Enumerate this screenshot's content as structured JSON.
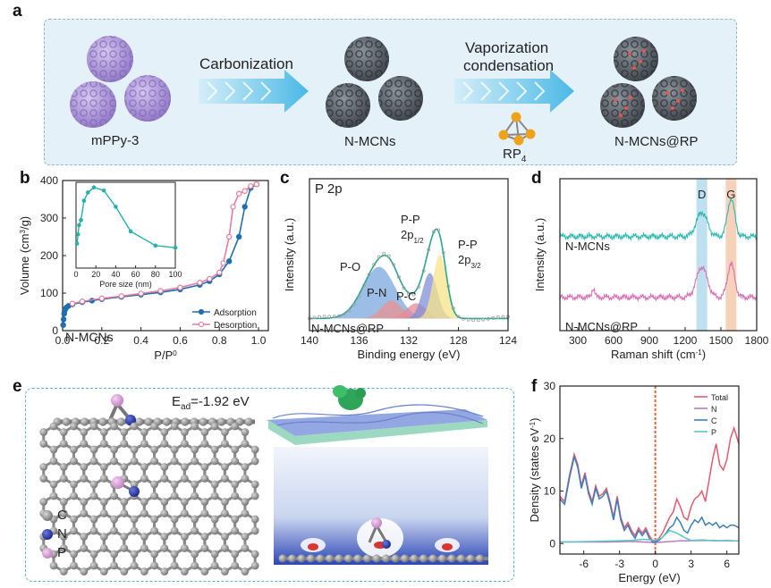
{
  "panel_labels": {
    "a": "a",
    "b": "b",
    "c": "c",
    "d": "d",
    "e": "e",
    "f": "f"
  },
  "panel_a": {
    "items": [
      "mPPy-3",
      "N-MCNs",
      "N-MCNs@RP"
    ],
    "arrow1_label": "Carbonization",
    "arrow2_label_line1": "Vaporization",
    "arrow2_label_line2": "condensation",
    "rp4_label": "RP",
    "rp4_sub": "4",
    "colors": {
      "mppy": "#b9a3df",
      "mcn": "#555b63",
      "rp": "#e8564f",
      "arrow": "#5cc3ea",
      "p_atom": "#f0a21c"
    }
  },
  "panel_e": {
    "energy_label": "E",
    "energy_sub": "ad",
    "energy_value": "=-1.92 eV",
    "legend": [
      {
        "label": "C",
        "color": "#8f8f8f"
      },
      {
        "label": "N",
        "color": "#2b3a9f"
      },
      {
        "label": "P",
        "color": "#d79bd5"
      }
    ]
  },
  "chart_data": [
    {
      "id": "b",
      "type": "line",
      "xlabel": "P/P",
      "xlabel_sup": "0",
      "ylabel": "Volume (cm",
      "ylabel_sup": "3",
      "ylabel_end": "/g)",
      "xlim": [
        0,
        1.05
      ],
      "ylim": [
        0,
        400
      ],
      "xticks": [
        "0.0",
        "0.2",
        "0.4",
        "0.6",
        "0.8",
        "1.0"
      ],
      "xtick_values": [
        0,
        0.2,
        0.4,
        0.6,
        0.8,
        1.0
      ],
      "yticks": [
        "0",
        "100",
        "200",
        "300",
        "400"
      ],
      "ytick_values": [
        0,
        100,
        200,
        300,
        400
      ],
      "annotation": "N-MCNs",
      "series": [
        {
          "name": "Adsorption",
          "color": "#1f6fb0",
          "x": [
            0.003,
            0.005,
            0.008,
            0.01,
            0.015,
            0.02,
            0.03,
            0.05,
            0.1,
            0.15,
            0.2,
            0.3,
            0.4,
            0.5,
            0.6,
            0.7,
            0.75,
            0.8,
            0.85,
            0.9,
            0.93,
            0.96,
            0.99
          ],
          "y": [
            15,
            30,
            45,
            52,
            58,
            62,
            66,
            70,
            76,
            80,
            84,
            90,
            96,
            102,
            110,
            122,
            132,
            150,
            185,
            250,
            330,
            380,
            390
          ]
        },
        {
          "name": "Desorption",
          "color": "#e77ca0",
          "x": [
            0.99,
            0.96,
            0.93,
            0.9,
            0.87,
            0.85,
            0.82,
            0.8,
            0.75,
            0.7,
            0.6,
            0.5,
            0.4,
            0.3,
            0.2,
            0.1,
            0.05
          ],
          "y": [
            390,
            385,
            372,
            365,
            330,
            250,
            180,
            155,
            138,
            128,
            115,
            106,
            99,
            92,
            86,
            78,
            72
          ]
        }
      ],
      "inset": {
        "xlabel": "Pore size (nm)",
        "xlim": [
          0,
          100
        ],
        "xticks": [
          "0",
          "20",
          "40",
          "60",
          "80",
          "100"
        ],
        "xtick_values": [
          0,
          20,
          40,
          60,
          80,
          100
        ],
        "ylim": [
          0,
          420
        ],
        "color": "#27b1a8",
        "x": [
          1,
          2,
          3,
          5,
          8,
          12,
          18,
          28,
          40,
          55,
          80,
          100
        ],
        "y": [
          120,
          165,
          210,
          235,
          330,
          370,
          395,
          380,
          300,
          180,
          110,
          100
        ]
      }
    },
    {
      "id": "c",
      "type": "line",
      "title": "P 2p",
      "xlabel": "Binding energy (eV)",
      "ylabel": "Intensity (a.u.)",
      "xlim": [
        140,
        124
      ],
      "xticks": [
        "140",
        "136",
        "132",
        "128",
        "124"
      ],
      "xtick_values": [
        140,
        136,
        132,
        128,
        124
      ],
      "ylim": [
        0,
        1
      ],
      "annotation": "N-MCNs@RP",
      "peaks": [
        {
          "name": "P-O",
          "center": 134.4,
          "height": 0.34,
          "width": 1.3,
          "color": "#7ba7dd"
        },
        {
          "name": "P-N",
          "center": 133.4,
          "height": 0.12,
          "width": 0.8,
          "color": "#e8938f"
        },
        {
          "name": "P-C",
          "center": 131.4,
          "height": 0.1,
          "width": 0.8,
          "color": "#e6899a"
        },
        {
          "name": "P-P 2p1/2",
          "center": 130.3,
          "height": 0.3,
          "width": 0.6,
          "color": "#7f8fd8"
        },
        {
          "name": "P-P 2p3/2",
          "center": 129.5,
          "height": 0.42,
          "width": 0.55,
          "color": "#f7e48a"
        }
      ],
      "peak_labels": [
        {
          "text": "P-O",
          "sub": ""
        },
        {
          "text": "P-N",
          "sub": ""
        },
        {
          "text": "P-C",
          "sub": ""
        },
        {
          "text": "P-P",
          "line2": "2p",
          "sub": "1/2"
        },
        {
          "text": "P-P",
          "line2": "2p",
          "sub": "3/2"
        }
      ],
      "baseline": 0.08,
      "envelope_color": "#2aa58f",
      "data_color": "#a0a0a0"
    },
    {
      "id": "d",
      "type": "line",
      "xlabel": "Raman shift (cm",
      "xlabel_sup": "-1",
      "xlabel_end": ")",
      "ylabel": "Intensity (a.u.)",
      "xlim": [
        150,
        1800
      ],
      "xticks": [
        "300",
        "600",
        "900",
        "1200",
        "1500",
        "1800"
      ],
      "xtick_values": [
        300,
        600,
        900,
        1200,
        1500,
        1800
      ],
      "bands": [
        {
          "name": "D",
          "center": 1340,
          "width": 90,
          "color": "#bfe0ee"
        },
        {
          "name": "G",
          "center": 1585,
          "width": 90,
          "color": "#f7d2bb"
        }
      ],
      "series": [
        {
          "name": "N-MCNs",
          "color": "#2bb7b0",
          "offset": 0.62,
          "d_height": 0.16,
          "g_height": 0.25,
          "bg_peak": 0
        },
        {
          "name": "N-MCNs@RP",
          "color": "#d76fb6",
          "offset": 0.22,
          "d_height": 0.2,
          "g_height": 0.22,
          "bg_peak": 0.06
        }
      ]
    },
    {
      "id": "f",
      "type": "line",
      "xlabel": "Energy (eV)",
      "ylabel": "Density (states eV",
      "ylabel_sup": "-1",
      "ylabel_end": ")",
      "xlim": [
        -8,
        7
      ],
      "ylim": [
        -2,
        30
      ],
      "xticks": [
        "-6",
        "-3",
        "0",
        "3",
        "6"
      ],
      "xtick_values": [
        -6,
        -3,
        0,
        3,
        6
      ],
      "yticks": [
        "0",
        "10",
        "20",
        "30"
      ],
      "ytick_values": [
        0,
        10,
        20,
        30
      ],
      "fermi_color": "#e06a3e",
      "series": [
        {
          "name": "Total",
          "color": "#e35b6c",
          "x": [
            -8,
            -7.6,
            -7.2,
            -6.8,
            -6.5,
            -6.2,
            -5.9,
            -5.6,
            -5.3,
            -5.0,
            -4.7,
            -4.4,
            -4.1,
            -3.8,
            -3.5,
            -3.2,
            -2.9,
            -2.6,
            -2.3,
            -2.0,
            -1.7,
            -1.4,
            -1.1,
            -0.8,
            -0.5,
            -0.2,
            0,
            0.3,
            0.6,
            0.9,
            1.2,
            1.5,
            1.8,
            2.1,
            2.4,
            2.7,
            3.0,
            3.3,
            3.6,
            3.9,
            4.2,
            4.5,
            4.8,
            5.1,
            5.4,
            5.7,
            6.0,
            6.3,
            6.6,
            7
          ],
          "y": [
            9,
            8,
            13,
            17,
            15,
            11,
            13.5,
            10,
            8,
            11,
            9,
            9.5,
            10.5,
            8,
            5,
            9,
            5,
            3,
            4,
            2.5,
            1.5,
            3,
            2,
            3,
            1.5,
            0.5,
            0.5,
            1,
            2,
            3.5,
            5,
            6,
            8.5,
            7,
            5,
            4.5,
            7,
            8.5,
            9,
            10,
            8,
            12,
            16,
            19,
            15,
            14,
            16,
            20,
            22,
            19
          ]
        },
        {
          "name": "N",
          "color": "#b877c7",
          "x": [
            -8,
            -4,
            -2,
            0,
            2,
            4,
            7
          ],
          "y": [
            0.3,
            0.3,
            0.4,
            0.2,
            0.5,
            0.6,
            0.5
          ]
        },
        {
          "name": "C",
          "color": "#3b7fc0",
          "x": [
            -8,
            -7.6,
            -7.2,
            -6.8,
            -6.5,
            -6.2,
            -5.9,
            -5.6,
            -5.3,
            -5.0,
            -4.7,
            -4.4,
            -4.1,
            -3.8,
            -3.5,
            -3.2,
            -2.9,
            -2.6,
            -2.3,
            -2.0,
            -1.7,
            -1.4,
            -1.1,
            -0.8,
            -0.5,
            -0.2,
            0,
            0.3,
            0.6,
            0.9,
            1.2,
            1.5,
            1.8,
            2.1,
            2.4,
            2.7,
            3.0,
            3.3,
            3.6,
            3.9,
            4.2,
            4.5,
            4.8,
            5.1,
            5.4,
            5.7,
            6.0,
            6.3,
            6.6,
            7
          ],
          "y": [
            8.5,
            7.5,
            12.5,
            16.5,
            14.5,
            10.5,
            13,
            9.5,
            7.5,
            10.5,
            8.5,
            9,
            10,
            7.5,
            4.5,
            8.5,
            4.5,
            2.5,
            3.5,
            2,
            1,
            2.5,
            1.5,
            2.5,
            1,
            0.2,
            0.3,
            0.6,
            1.2,
            2,
            3,
            3.5,
            5,
            4,
            2.5,
            2,
            3.5,
            4.5,
            4,
            5,
            3.5,
            4,
            3.5,
            4,
            3,
            3.5,
            3,
            3.5,
            3.5,
            3
          ]
        },
        {
          "name": "P",
          "color": "#5bc7c4",
          "x": [
            -8,
            -5,
            -2,
            -1,
            0,
            0.5,
            1.2,
            1.8,
            2.4,
            3,
            4,
            5,
            6,
            7
          ],
          "y": [
            0.3,
            0.4,
            0.6,
            0.8,
            0.6,
            1,
            2.5,
            2,
            1.2,
            0.6,
            0.7,
            0.5,
            0.6,
            0.5
          ]
        }
      ]
    }
  ]
}
